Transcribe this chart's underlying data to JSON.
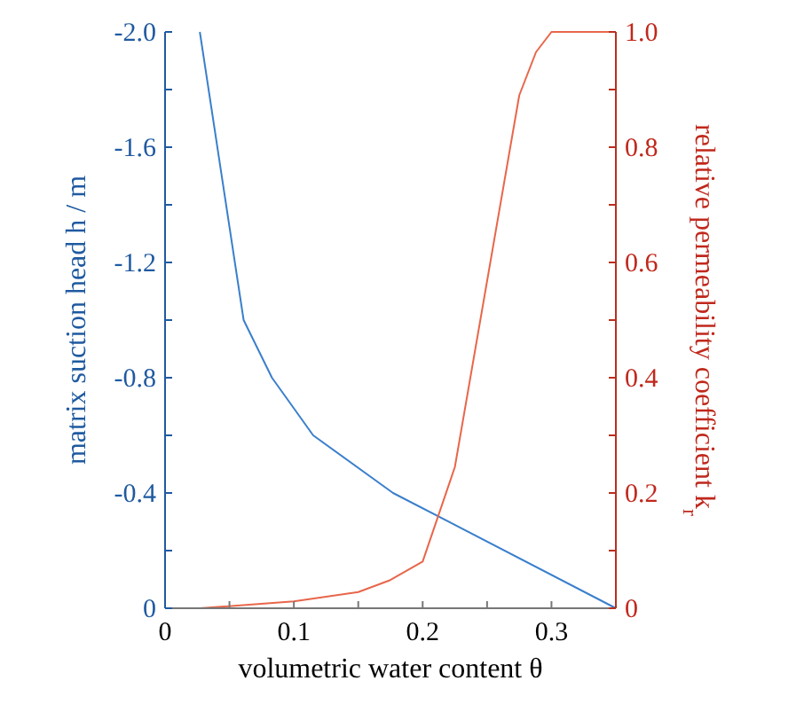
{
  "chart_data": {
    "type": "line",
    "xlabel": "volumetric water content  θ",
    "ylabel": "matrix suction head h / m",
    "y2label": "relative permeability coefficient k$_{r}$",
    "xlim": [
      0,
      0.35
    ],
    "xticks": [
      0,
      {
        "value": 0.05,
        "label": null
      },
      0.1,
      {
        "value": 0.15,
        "label": null
      },
      0.2,
      {
        "value": 0.25,
        "label": null
      },
      0.3,
      {
        "value": 0.35,
        "label": null
      }
    ],
    "ylim": [
      0,
      -2.0
    ],
    "yticks": [
      0,
      {
        "value": -0.2,
        "label": null
      },
      -0.4,
      {
        "value": -0.6,
        "label": null
      },
      -0.8,
      {
        "value": -1.0,
        "label": null
      },
      -1.2,
      {
        "value": -1.4,
        "label": null
      },
      -1.6,
      {
        "value": -1.8,
        "label": null
      },
      {
        "value": -2.0,
        "label": "-2.0"
      }
    ],
    "y2lim": [
      0,
      1.0
    ],
    "y2ticks": [
      0,
      {
        "value": 0.1,
        "label": null
      },
      0.2,
      {
        "value": 0.3,
        "label": null
      },
      0.4,
      {
        "value": 0.5,
        "label": null
      },
      0.6,
      {
        "value": 0.7,
        "label": null
      },
      0.8,
      {
        "value": 0.9,
        "label": null
      },
      {
        "value": 1.0,
        "label": "1.0"
      }
    ],
    "grid": false,
    "series": [
      {
        "color": "#3a7fcc",
        "x": [
          0.027,
          0.061,
          0.083,
          0.115,
          0.177,
          0.35
        ],
        "values": [
          -2.0,
          -1.0,
          -0.8,
          -0.6,
          -0.4,
          0
        ]
      },
      {
        "color": "#e8664a",
        "axis": "y2",
        "x": [
          0.027,
          0.1,
          0.15,
          0.174,
          0.2,
          0.225,
          0.275,
          0.288,
          0.3,
          0.35
        ],
        "values": [
          0,
          0.012,
          0.028,
          0.048,
          0.081,
          0.245,
          0.89,
          0.965,
          1.0,
          1.0
        ]
      }
    ]
  }
}
